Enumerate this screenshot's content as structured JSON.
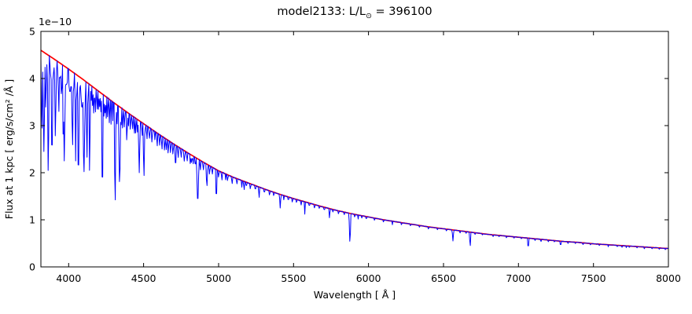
{
  "figure": {
    "title_prefix": "model2133: L/L",
    "title_sub": "⊙",
    "title_suffix": " = 396100"
  },
  "chart_data": {
    "type": "line",
    "title": "model2133: L/L⊙ = 396100",
    "xlabel": "Wavelength [ Å ]",
    "ylabel": "Flux at 1 kpc [ erg/s/cm² /Å ]",
    "y_scale_offset_text": "1e−10",
    "y_unit_factor": 1e-10,
    "xlim": [
      3815,
      8000
    ],
    "ylim": [
      0,
      5
    ],
    "xticks": [
      4000,
      4500,
      5000,
      5500,
      6000,
      6500,
      7000,
      7500,
      8000
    ],
    "yticks": [
      0,
      1,
      2,
      3,
      4,
      5
    ],
    "grid": false,
    "legend": "none",
    "series": [
      {
        "name": "spectrum",
        "color": "#0000ff",
        "description": "model spectrum with absorption lines"
      },
      {
        "name": "continuum-fit",
        "color": "#ff0000",
        "description": "smooth continuum curve"
      }
    ],
    "continuum": {
      "wavelength_A": [
        3800,
        3900,
        4000,
        4100,
        4200,
        4300,
        4400,
        4500,
        4600,
        4700,
        4800,
        4900,
        5000,
        5100,
        5200,
        5300,
        5400,
        5500,
        5600,
        5700,
        5800,
        5900,
        6000,
        6100,
        6200,
        6300,
        6400,
        6500,
        6600,
        6700,
        6800,
        6900,
        7000,
        7100,
        7200,
        7300,
        7400,
        7500,
        7600,
        7700,
        7800,
        7900,
        8000
      ],
      "flux": [
        4.63,
        4.42,
        4.2,
        3.97,
        3.73,
        3.49,
        3.26,
        3.04,
        2.82,
        2.61,
        2.41,
        2.22,
        2.04,
        1.9,
        1.78,
        1.66,
        1.55,
        1.45,
        1.36,
        1.27,
        1.19,
        1.12,
        1.06,
        1.0,
        0.95,
        0.9,
        0.85,
        0.81,
        0.77,
        0.73,
        0.69,
        0.66,
        0.63,
        0.6,
        0.57,
        0.54,
        0.52,
        0.49,
        0.47,
        0.45,
        0.43,
        0.41,
        0.39
      ]
    },
    "absorption_lines": [
      [
        3822,
        2.85,
        6
      ],
      [
        3835,
        2.45,
        7
      ],
      [
        3848,
        3.3,
        5
      ],
      [
        3864,
        1.9,
        6
      ],
      [
        3889,
        2.3,
        7
      ],
      [
        3912,
        2.65,
        5
      ],
      [
        3935,
        3.3,
        5
      ],
      [
        3950,
        3.6,
        4
      ],
      [
        3964,
        2.7,
        5
      ],
      [
        3971,
        2.25,
        7
      ],
      [
        3985,
        3.7,
        4
      ],
      [
        4009,
        3.5,
        4
      ],
      [
        4026,
        2.5,
        6
      ],
      [
        4047,
        2.25,
        5
      ],
      [
        4065,
        1.6,
        5
      ],
      [
        4089,
        3.1,
        4
      ],
      [
        4102,
        1.95,
        8
      ],
      [
        4122,
        2.2,
        5
      ],
      [
        4140,
        1.9,
        5
      ],
      [
        4168,
        3.2,
        4
      ],
      [
        4200,
        3.3,
        4
      ],
      [
        4225,
        1.38,
        5
      ],
      [
        4250,
        3.1,
        4
      ],
      [
        4272,
        3.0,
        4
      ],
      [
        4310,
        1.3,
        6
      ],
      [
        4340,
        1.75,
        8
      ],
      [
        4360,
        2.9,
        4
      ],
      [
        4388,
        2.65,
        5
      ],
      [
        4438,
        2.8,
        4
      ],
      [
        4471,
        2.0,
        6
      ],
      [
        4502,
        1.85,
        5
      ],
      [
        4541,
        2.8,
        4
      ],
      [
        4575,
        2.7,
        4
      ],
      [
        4640,
        2.45,
        4
      ],
      [
        4680,
        2.4,
        4
      ],
      [
        4713,
        2.1,
        5
      ],
      [
        4770,
        2.3,
        4
      ],
      [
        4820,
        2.2,
        4
      ],
      [
        4861,
        1.35,
        8
      ],
      [
        4922,
        1.7,
        6
      ],
      [
        4985,
        1.45,
        6
      ],
      [
        5047,
        1.85,
        4
      ],
      [
        5170,
        1.62,
        4
      ],
      [
        5270,
        1.45,
        4
      ],
      [
        5411,
        1.25,
        5
      ],
      [
        5575,
        1.12,
        4
      ],
      [
        5740,
        1.02,
        4
      ],
      [
        5876,
        0.51,
        6
      ],
      [
        5930,
        1.0,
        3
      ],
      [
        6160,
        0.88,
        3
      ],
      [
        6563,
        0.55,
        5
      ],
      [
        6678,
        0.43,
        5
      ],
      [
        7065,
        0.4,
        5
      ],
      [
        7281,
        0.44,
        4
      ],
      [
        7600,
        0.42,
        3
      ],
      [
        7720,
        0.4,
        3
      ]
    ],
    "minor_lines": [
      [
        3812,
        0.5
      ],
      [
        3830,
        0.45
      ],
      [
        3843,
        0.3
      ],
      [
        3852,
        0.5
      ],
      [
        3858,
        0.6
      ],
      [
        3878,
        0.4
      ],
      [
        3898,
        0.35
      ],
      [
        3906,
        0.5
      ],
      [
        3918,
        0.3
      ],
      [
        3930,
        0.6
      ],
      [
        3944,
        0.35
      ],
      [
        3955,
        0.5
      ],
      [
        3978,
        0.45
      ],
      [
        3991,
        0.3
      ],
      [
        4004,
        0.4
      ],
      [
        4017,
        0.5
      ],
      [
        4033,
        0.45
      ],
      [
        4056,
        0.4
      ],
      [
        4072,
        0.6
      ],
      [
        4082,
        0.45
      ],
      [
        4094,
        0.55
      ],
      [
        4110,
        0.45
      ],
      [
        4128,
        0.5
      ],
      [
        4150,
        0.35
      ],
      [
        4160,
        0.45
      ],
      [
        4178,
        0.55
      ],
      [
        4190,
        0.45
      ],
      [
        4208,
        0.35
      ],
      [
        4216,
        0.45
      ],
      [
        4236,
        0.5
      ],
      [
        4242,
        0.4
      ],
      [
        4260,
        0.45
      ],
      [
        4283,
        0.5
      ],
      [
        4295,
        0.4
      ],
      [
        4322,
        0.45
      ],
      [
        4350,
        0.4
      ],
      [
        4372,
        0.4
      ],
      [
        4398,
        0.3
      ],
      [
        4412,
        0.35
      ],
      [
        4426,
        0.3
      ],
      [
        4448,
        0.35
      ],
      [
        4460,
        0.3
      ],
      [
        4490,
        0.3
      ],
      [
        4508,
        0.25
      ],
      [
        4522,
        0.3
      ],
      [
        4538,
        0.25
      ],
      [
        4556,
        0.3
      ],
      [
        4590,
        0.3
      ],
      [
        4606,
        0.25
      ],
      [
        4622,
        0.3
      ],
      [
        4652,
        0.25
      ],
      [
        4664,
        0.3
      ],
      [
        4696,
        0.25
      ],
      [
        4730,
        0.25
      ],
      [
        4750,
        0.2
      ],
      [
        4772,
        0.25
      ],
      [
        4790,
        0.2
      ],
      [
        4812,
        0.22
      ],
      [
        4830,
        0.18
      ],
      [
        4845,
        0.2
      ],
      [
        4878,
        0.22
      ],
      [
        4898,
        0.18
      ],
      [
        4940,
        0.2
      ],
      [
        4958,
        0.16
      ],
      [
        5000,
        0.15
      ],
      [
        5022,
        0.18
      ],
      [
        5060,
        0.14
      ],
      [
        5090,
        0.16
      ],
      [
        5122,
        0.12
      ],
      [
        5155,
        0.14
      ],
      [
        5185,
        0.1
      ],
      [
        5212,
        0.12
      ],
      [
        5245,
        0.1
      ],
      [
        5305,
        0.09
      ],
      [
        5340,
        0.1
      ],
      [
        5368,
        0.08
      ],
      [
        5435,
        0.09
      ],
      [
        5465,
        0.08
      ],
      [
        5492,
        0.09
      ],
      [
        5520,
        0.07
      ],
      [
        5550,
        0.1
      ],
      [
        5605,
        0.07
      ],
      [
        5640,
        0.08
      ],
      [
        5672,
        0.06
      ],
      [
        5705,
        0.07
      ],
      [
        5762,
        0.06
      ],
      [
        5800,
        0.07
      ],
      [
        5838,
        0.06
      ],
      [
        5908,
        0.06
      ],
      [
        5955,
        0.05
      ],
      [
        5985,
        0.06
      ],
      [
        6040,
        0.05
      ],
      [
        6100,
        0.05
      ],
      [
        6220,
        0.05
      ],
      [
        6280,
        0.04
      ],
      [
        6340,
        0.04
      ],
      [
        6400,
        0.05
      ],
      [
        6460,
        0.04
      ],
      [
        6520,
        0.04
      ],
      [
        6610,
        0.05
      ],
      [
        6650,
        0.04
      ],
      [
        6710,
        0.04
      ],
      [
        6760,
        0.03
      ],
      [
        6830,
        0.04
      ],
      [
        6870,
        0.03
      ],
      [
        6920,
        0.04
      ],
      [
        6970,
        0.03
      ],
      [
        7020,
        0.03
      ],
      [
        7110,
        0.04
      ],
      [
        7150,
        0.05
      ],
      [
        7200,
        0.04
      ],
      [
        7240,
        0.03
      ],
      [
        7330,
        0.04
      ],
      [
        7380,
        0.03
      ],
      [
        7430,
        0.04
      ],
      [
        7480,
        0.03
      ],
      [
        7540,
        0.03
      ],
      [
        7660,
        0.03
      ],
      [
        7690,
        0.04
      ],
      [
        7740,
        0.03
      ],
      [
        7790,
        0.03
      ],
      [
        7840,
        0.04
      ],
      [
        7890,
        0.03
      ],
      [
        7940,
        0.03
      ],
      [
        7980,
        0.03
      ]
    ]
  }
}
